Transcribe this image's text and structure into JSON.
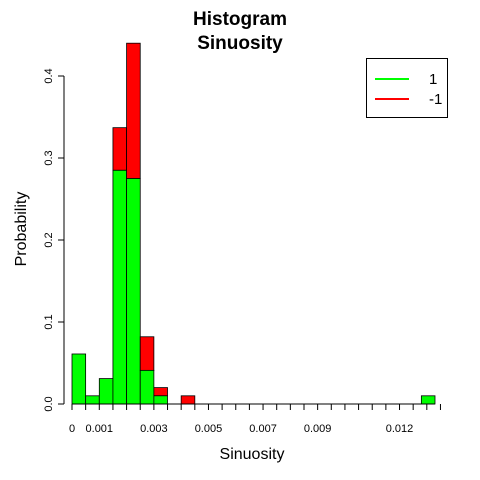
{
  "chart_data": {
    "type": "bar",
    "title": "Histogram",
    "subtitle": "Sinuosity",
    "xlabel": "Sinuosity",
    "ylabel": "Probability",
    "x_range": [
      0,
      0.0133
    ],
    "bin_width": 0.0005,
    "ylim": [
      0,
      0.44
    ],
    "y_ticks": [
      "0.0",
      "0.1",
      "0.2",
      "0.3",
      "0.4"
    ],
    "x_tick_labels": [
      {
        "value": 0,
        "label": "0"
      },
      {
        "value": 0.001,
        "label": "0.001"
      },
      {
        "value": 0.003,
        "label": "0.003"
      },
      {
        "value": 0.005,
        "label": "0.005"
      },
      {
        "value": 0.007,
        "label": "0.007"
      },
      {
        "value": 0.009,
        "label": "0.009"
      },
      {
        "value": 0.012,
        "label": "0.012"
      }
    ],
    "bins": [
      {
        "x0": 0.0,
        "x1": 0.0005,
        "green": 0.061,
        "red": 0.061
      },
      {
        "x0": 0.0005,
        "x1": 0.001,
        "green": 0.01,
        "red": 0.01
      },
      {
        "x0": 0.001,
        "x1": 0.0015,
        "green": 0.031,
        "red": 0.031
      },
      {
        "x0": 0.0015,
        "x1": 0.002,
        "green": 0.285,
        "red": 0.337
      },
      {
        "x0": 0.002,
        "x1": 0.0025,
        "green": 0.275,
        "red": 0.44
      },
      {
        "x0": 0.0025,
        "x1": 0.003,
        "green": 0.041,
        "red": 0.082
      },
      {
        "x0": 0.003,
        "x1": 0.0035,
        "green": 0.01,
        "red": 0.02
      },
      {
        "x0": 0.004,
        "x1": 0.0045,
        "green": 0.0,
        "red": 0.01
      },
      {
        "x0": 0.0128,
        "x1": 0.0133,
        "green": 0.01,
        "red": 0.01
      }
    ],
    "series": [
      {
        "name": "1",
        "color": "#00ff00"
      },
      {
        "name": "-1",
        "color": "#ff0000"
      }
    ],
    "legend_position": "top-right"
  }
}
